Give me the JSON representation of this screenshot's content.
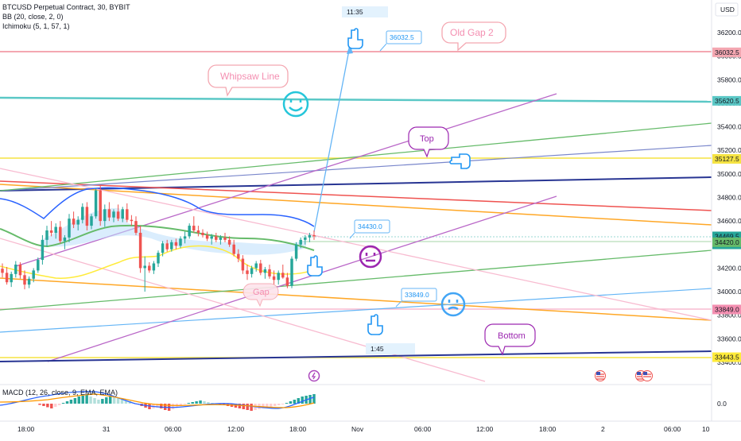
{
  "chart_data": {
    "type": "candlestick",
    "symbol_line": "BTCUSD Perpetual Contract, 30, BYBIT",
    "indicators": [
      "BB (20, close, 2, 0)",
      "Ichimoku (5, 1, 57, 1)"
    ],
    "macd_label": "MACD (12, 26, close, 9, EMA, EMA)",
    "currency": "USD",
    "y_ticks": [
      "36200.0",
      "36000.0",
      "35800.0",
      "35600.0",
      "35400.0",
      "35200.0",
      "35000.0",
      "34800.0",
      "34600.0",
      "34200.0",
      "34000.0",
      "33800.0",
      "33600.0",
      "33400.0"
    ],
    "y_range": [
      33400,
      36200
    ],
    "macd_tick": "0.0",
    "x_ticks": [
      "18:00",
      "31",
      "06:00",
      "12:00",
      "18:00",
      "Nov",
      "06:00",
      "12:00",
      "18:00",
      "2",
      "06:00",
      "10"
    ],
    "price_tags": [
      {
        "value": "36032.5",
        "color": "#f4a7b1"
      },
      {
        "value": "35620.5",
        "color": "#5bc8c6"
      },
      {
        "value": "35127.5",
        "color": "#f5e342"
      },
      {
        "value": "34469.5",
        "color": "#26a69a",
        "sub": "11:15"
      },
      {
        "value": "34420.0",
        "color": "#66bb6a"
      },
      {
        "value": "33849.0",
        "color": "#f48fb1"
      },
      {
        "value": "33443.5",
        "color": "#ffeb3b"
      }
    ],
    "callouts": [
      "Whipsaw Line",
      "Old Gap 2",
      "Top",
      "Bottom",
      "Gap"
    ],
    "measure_labels": [
      "36032.5",
      "34430.0",
      "33849.0"
    ],
    "time_labels": [
      "11:35",
      "1:45"
    ],
    "candles": [
      [
        34195,
        34240,
        34120,
        34160
      ],
      [
        34160,
        34210,
        34060,
        34080
      ],
      [
        34080,
        34170,
        34040,
        34150
      ],
      [
        34150,
        34260,
        34120,
        34230
      ],
      [
        34230,
        34250,
        34110,
        34140
      ],
      [
        34140,
        34180,
        34020,
        34060
      ],
      [
        34060,
        34130,
        34030,
        34110
      ],
      [
        34110,
        34200,
        34080,
        34180
      ],
      [
        34180,
        34290,
        34160,
        34270
      ],
      [
        34270,
        34480,
        34230,
        34440
      ],
      [
        34440,
        34560,
        34380,
        34520
      ],
      [
        34520,
        34600,
        34470,
        34500
      ],
      [
        34500,
        34580,
        34450,
        34550
      ],
      [
        34550,
        34600,
        34410,
        34430
      ],
      [
        34430,
        34480,
        34360,
        34460
      ],
      [
        34460,
        34660,
        34420,
        34620
      ],
      [
        34620,
        34680,
        34540,
        34570
      ],
      [
        34570,
        34640,
        34520,
        34610
      ],
      [
        34610,
        34750,
        34580,
        34720
      ],
      [
        34720,
        34760,
        34520,
        34560
      ],
      [
        34560,
        34660,
        34530,
        34640
      ],
      [
        34640,
        34880,
        34620,
        34860
      ],
      [
        34860,
        34900,
        34560,
        34600
      ],
      [
        34600,
        34740,
        34550,
        34700
      ],
      [
        34700,
        34760,
        34600,
        34630
      ],
      [
        34630,
        34700,
        34590,
        34680
      ],
      [
        34680,
        34740,
        34600,
        34620
      ],
      [
        34620,
        34720,
        34590,
        34700
      ],
      [
        34700,
        34750,
        34590,
        34610
      ],
      [
        34610,
        34650,
        34560,
        34600
      ],
      [
        34600,
        34640,
        34480,
        34500
      ],
      [
        34500,
        34560,
        34160,
        34200
      ],
      [
        34200,
        34300,
        34000,
        34220
      ],
      [
        34220,
        34250,
        34160,
        34180
      ],
      [
        34180,
        34260,
        34150,
        34240
      ],
      [
        34240,
        34350,
        34210,
        34330
      ],
      [
        34330,
        34430,
        34300,
        34410
      ],
      [
        34410,
        34440,
        34340,
        34360
      ],
      [
        34360,
        34440,
        34340,
        34420
      ],
      [
        34420,
        34450,
        34360,
        34390
      ],
      [
        34390,
        34470,
        34370,
        34450
      ],
      [
        34450,
        34510,
        34410,
        34470
      ],
      [
        34470,
        34580,
        34450,
        34560
      ],
      [
        34560,
        34640,
        34500,
        34520
      ],
      [
        34520,
        34560,
        34470,
        34500
      ],
      [
        34500,
        34530,
        34460,
        34480
      ],
      [
        34480,
        34510,
        34430,
        34450
      ],
      [
        34450,
        34490,
        34400,
        34470
      ],
      [
        34470,
        34500,
        34420,
        34440
      ],
      [
        34440,
        34480,
        34400,
        34460
      ],
      [
        34460,
        34500,
        34420,
        34440
      ],
      [
        34440,
        34470,
        34380,
        34400
      ],
      [
        34400,
        34440,
        34300,
        34320
      ],
      [
        34320,
        34360,
        34250,
        34280
      ],
      [
        34280,
        34310,
        34150,
        34180
      ],
      [
        34180,
        34230,
        34100,
        34150
      ],
      [
        34150,
        34220,
        34120,
        34200
      ],
      [
        34200,
        34260,
        34170,
        34240
      ],
      [
        34240,
        34270,
        34140,
        34160
      ],
      [
        34160,
        34210,
        34110,
        34190
      ],
      [
        34190,
        34230,
        34110,
        34130
      ],
      [
        34130,
        34180,
        34060,
        34100
      ],
      [
        34100,
        34180,
        34060,
        34160
      ],
      [
        34160,
        34230,
        34110,
        34120
      ],
      [
        34120,
        34160,
        34030,
        34050
      ],
      [
        34050,
        34300,
        34030,
        34280
      ],
      [
        34280,
        34420,
        34260,
        34400
      ],
      [
        34400,
        34460,
        34370,
        34440
      ],
      [
        34440,
        34480,
        34400,
        34460
      ],
      [
        34460,
        34500,
        34420,
        34480
      ],
      [
        34480,
        34520,
        34440,
        34470
      ]
    ],
    "macd_hist": [
      -3,
      -6,
      -9,
      -12,
      -8,
      -4,
      2,
      6,
      10,
      14,
      18,
      20,
      22,
      18,
      14,
      10,
      12,
      16,
      20,
      18,
      14,
      10,
      8,
      6,
      2,
      -2,
      -6,
      -10,
      -14,
      -12,
      -10,
      -12,
      -16,
      -18,
      -14,
      -10,
      -6,
      -2,
      2,
      4,
      6,
      8,
      6,
      4,
      2,
      0,
      -2,
      -4,
      -6,
      -8,
      -10,
      -12,
      -14,
      -16,
      -18,
      -16,
      -14,
      -12,
      -10,
      -8,
      -6,
      -4,
      -2,
      2,
      6,
      10,
      14,
      18,
      20,
      22,
      24
    ]
  },
  "colors": {
    "up": "#26a69a",
    "down": "#ef5350"
  },
  "icons": [
    "smiley-happy-icon",
    "smiley-neutral-icon",
    "smiley-confused-icon",
    "pointing-hand-icon",
    "lightning-icon",
    "us-flag-icon"
  ]
}
